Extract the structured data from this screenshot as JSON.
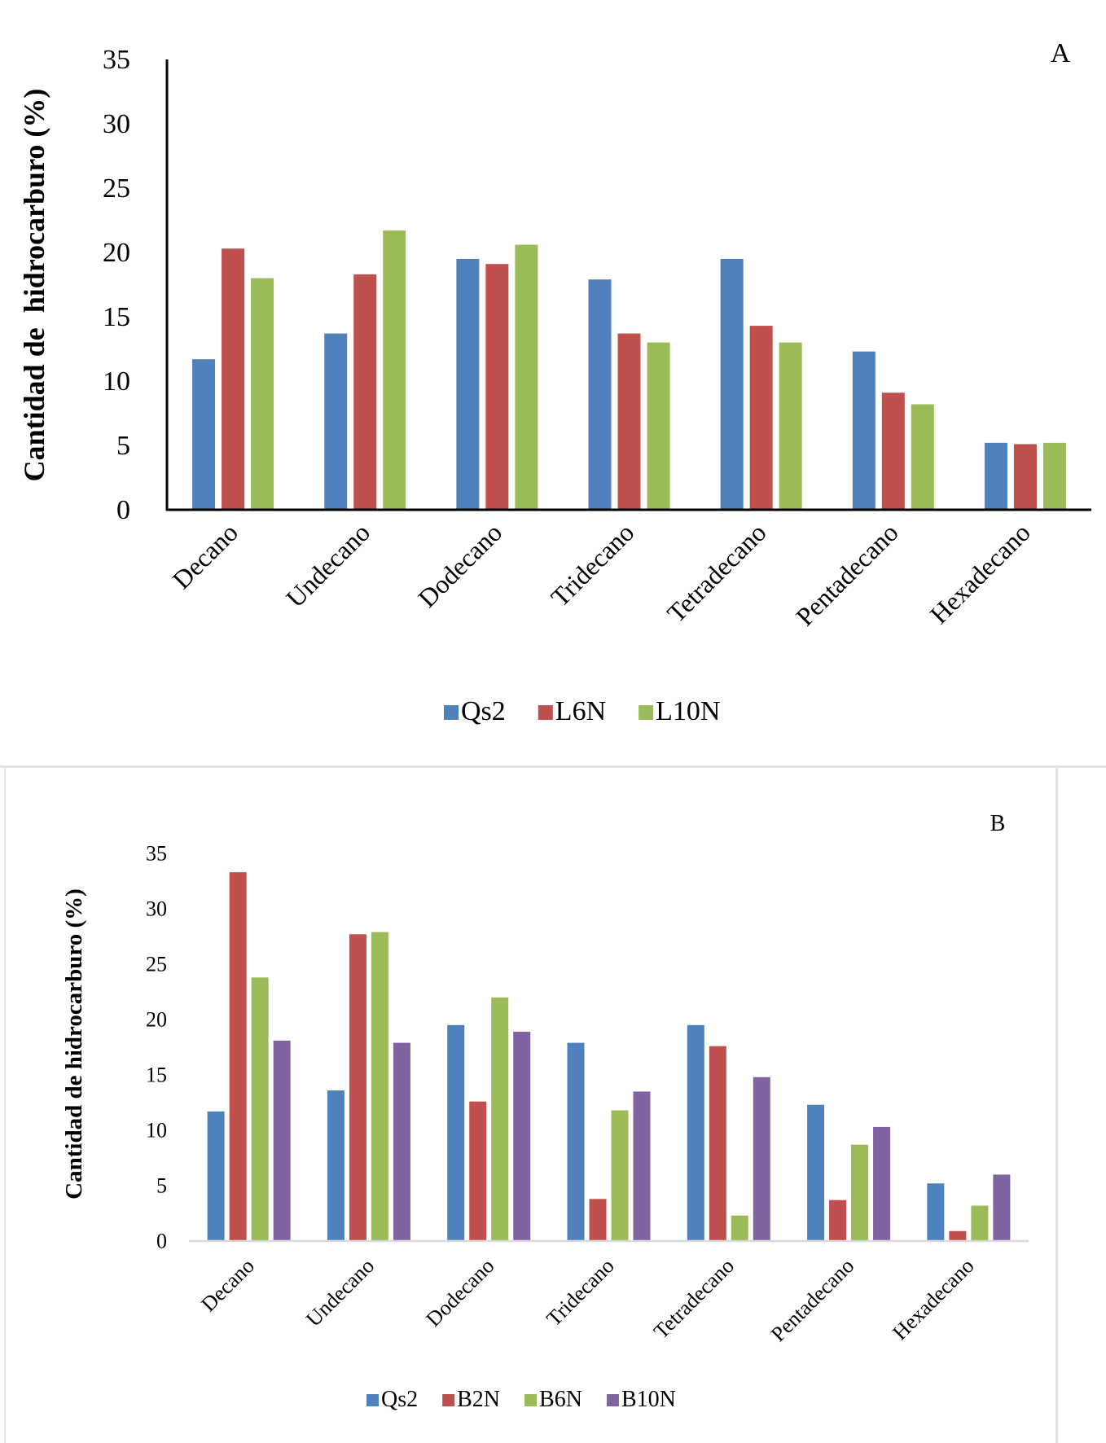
{
  "chart_data": [
    {
      "type": "bar",
      "panel_label": "A",
      "title": "",
      "xlabel": "",
      "ylabel": "Cantidad de  hidrocarburo (%)",
      "ylim": [
        0,
        35
      ],
      "yticks": [
        0,
        5,
        10,
        15,
        20,
        25,
        30,
        35
      ],
      "grid": false,
      "legend_position": "bottom",
      "categories": [
        "Decano",
        "Undecano",
        "Dodecano",
        "Tridecano",
        "Tetradecano",
        "Pentadecano",
        "Hexadecano"
      ],
      "series": [
        {
          "name": "Qs2",
          "color": "#4f81bd",
          "values": [
            11.7,
            13.7,
            19.5,
            17.9,
            19.5,
            12.3,
            5.2
          ]
        },
        {
          "name": "L6N",
          "color": "#c0504d",
          "values": [
            20.3,
            18.3,
            19.1,
            13.7,
            14.3,
            9.1,
            5.1
          ]
        },
        {
          "name": "L10N",
          "color": "#9bbb59",
          "values": [
            18.0,
            21.7,
            20.6,
            13.0,
            13.0,
            8.2,
            5.2
          ]
        }
      ]
    },
    {
      "type": "bar",
      "panel_label": "B",
      "title": "",
      "xlabel": "",
      "ylabel": "Cantidad de hidrocarburo (%)",
      "ylim": [
        0,
        35
      ],
      "yticks": [
        0,
        5,
        10,
        15,
        20,
        25,
        30,
        35
      ],
      "grid": false,
      "legend_position": "bottom",
      "categories": [
        "Decano",
        "Undecano",
        "Dodecano",
        "Tridecano",
        "Tetradecano",
        "Pentadecano",
        "Hexadecano"
      ],
      "series": [
        {
          "name": "Qs2",
          "color": "#4f81bd",
          "values": [
            11.7,
            13.6,
            19.5,
            17.9,
            19.5,
            12.3,
            5.2
          ]
        },
        {
          "name": "B2N",
          "color": "#c0504d",
          "values": [
            33.3,
            27.7,
            12.6,
            3.8,
            17.6,
            3.7,
            0.9
          ]
        },
        {
          "name": "B6N",
          "color": "#9bbb59",
          "values": [
            23.8,
            27.9,
            22.0,
            11.8,
            2.3,
            8.7,
            3.2
          ]
        },
        {
          "name": "B10N",
          "color": "#8064a2",
          "values": [
            18.1,
            17.9,
            18.9,
            13.5,
            14.8,
            10.3,
            6.0
          ]
        }
      ]
    }
  ]
}
